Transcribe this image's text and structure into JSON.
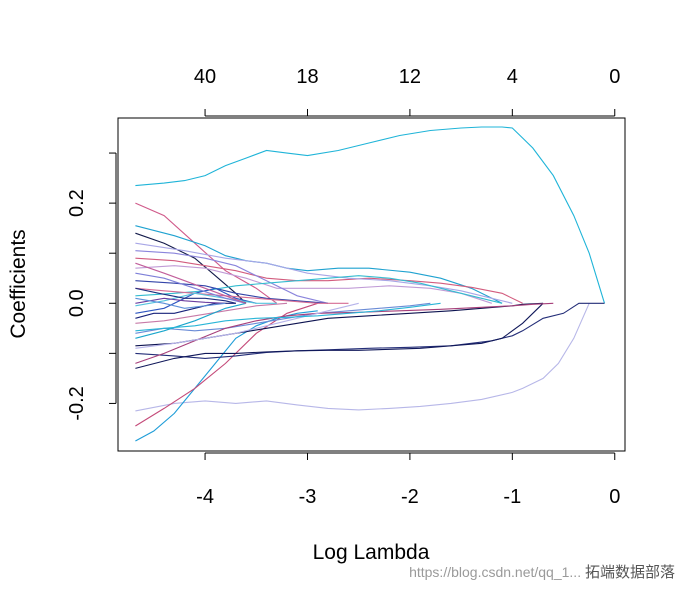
{
  "chart_data": {
    "type": "line",
    "xlabel": "Log Lambda",
    "ylabel": "Coefficients",
    "xlim": [
      -4.85,
      0.1
    ],
    "ylim": [
      -0.295,
      0.37
    ],
    "x_ticks": [
      -4,
      -3,
      -2,
      -1,
      0
    ],
    "x_tick_labels": [
      "-4",
      "-3",
      "-2",
      "-1",
      "0"
    ],
    "y_ticks": [
      -0.2,
      0.0,
      0.2
    ],
    "y_tick_labels": [
      "-0.2",
      "0.0",
      "0.2"
    ],
    "y_minor_ticks": [
      -0.1,
      0.1,
      0.3
    ],
    "top_axis_ticks": [
      -4,
      -3,
      -2,
      -1,
      0
    ],
    "top_axis_labels": [
      "40",
      "18",
      "12",
      "4",
      "0"
    ],
    "grid": false,
    "legend": "none",
    "series": [
      {
        "color": "#1fb4d8",
        "x": [
          -4.68,
          -4.4,
          -4.2,
          -4.0,
          -3.8,
          -3.6,
          -3.4,
          -3.2,
          -3.0,
          -2.7,
          -2.4,
          -2.1,
          -1.8,
          -1.5,
          -1.3,
          -1.1,
          -1.0,
          -0.9,
          -0.8,
          -0.6,
          -0.4,
          -0.25,
          -0.1
        ],
        "y": [
          0.235,
          0.24,
          0.245,
          0.255,
          0.275,
          0.29,
          0.305,
          0.3,
          0.295,
          0.305,
          0.32,
          0.335,
          0.345,
          0.35,
          0.352,
          0.352,
          0.35,
          0.33,
          0.31,
          0.255,
          0.175,
          0.1,
          0.0
        ]
      },
      {
        "color": "#b7b7e8",
        "x": [
          -4.68,
          -4.3,
          -4.0,
          -3.7,
          -3.4,
          -3.1,
          -2.8,
          -2.5,
          -2.2,
          -1.9,
          -1.6,
          -1.3,
          -1.0,
          -0.9,
          -0.7,
          -0.55,
          -0.4,
          -0.25
        ],
        "y": [
          -0.215,
          -0.2,
          -0.195,
          -0.2,
          -0.195,
          -0.203,
          -0.21,
          -0.213,
          -0.21,
          -0.206,
          -0.2,
          -0.192,
          -0.178,
          -0.17,
          -0.15,
          -0.12,
          -0.07,
          0.0
        ]
      },
      {
        "color": "#1f9dd8",
        "x": [
          -4.68,
          -4.5,
          -4.3,
          -4.1,
          -3.9,
          -3.7,
          -3.5,
          -3.3,
          -3.1,
          -2.9
        ],
        "y": [
          -0.275,
          -0.255,
          -0.22,
          -0.17,
          -0.12,
          -0.07,
          -0.045,
          -0.03,
          -0.02,
          -0.015
        ]
      },
      {
        "color": "#c44a79",
        "x": [
          -4.68,
          -4.4,
          -4.1,
          -3.8,
          -3.5,
          -3.2,
          -2.9
        ],
        "y": [
          -0.245,
          -0.21,
          -0.17,
          -0.12,
          -0.06,
          -0.02,
          0.0
        ]
      },
      {
        "color": "#d05a8a",
        "x": [
          -4.68,
          -4.4,
          -4.1,
          -3.8,
          -3.5,
          -3.3
        ],
        "y": [
          0.2,
          0.175,
          0.12,
          0.065,
          0.03,
          0.0
        ]
      },
      {
        "color": "#1fa2d0",
        "x": [
          -4.68,
          -4.3,
          -4.0,
          -3.8,
          -3.6,
          -3.4,
          -3.2,
          -3.0,
          -2.7,
          -2.4,
          -2.0,
          -1.7,
          -1.4,
          -1.1
        ],
        "y": [
          0.155,
          0.135,
          0.115,
          0.095,
          0.085,
          0.08,
          0.07,
          0.065,
          0.07,
          0.07,
          0.062,
          0.05,
          0.03,
          0.0
        ]
      },
      {
        "color": "#131a4a",
        "x": [
          -4.68,
          -4.4,
          -4.1,
          -3.9,
          -3.7,
          -3.6
        ],
        "y": [
          0.14,
          0.12,
          0.09,
          0.055,
          0.02,
          0.0
        ]
      },
      {
        "color": "#d25c7e",
        "x": [
          -4.68,
          -4.3,
          -4.0,
          -3.7,
          -3.4,
          -3.1,
          -2.8,
          -2.4,
          -2.0,
          -1.7,
          -1.4,
          -1.1,
          -0.9
        ],
        "y": [
          0.09,
          0.085,
          0.075,
          0.065,
          0.05,
          0.045,
          0.045,
          0.05,
          0.045,
          0.04,
          0.032,
          0.02,
          0.0
        ]
      },
      {
        "color": "#c09bd6",
        "x": [
          -4.68,
          -4.3,
          -4.0,
          -3.6,
          -3.3,
          -3.0,
          -2.6,
          -2.2,
          -1.8,
          -1.5,
          -1.2
        ],
        "y": [
          0.07,
          0.075,
          0.07,
          0.05,
          0.03,
          0.03,
          0.03,
          0.035,
          0.03,
          0.02,
          0.0
        ]
      },
      {
        "color": "#8a84dc",
        "x": [
          -4.68,
          -4.3,
          -4.0,
          -3.7,
          -3.4,
          -3.1,
          -2.8
        ],
        "y": [
          0.105,
          0.1,
          0.09,
          0.075,
          0.045,
          0.015,
          0.0
        ]
      },
      {
        "color": "#a8a6e6",
        "x": [
          -4.68,
          -4.2,
          -3.8,
          -3.4,
          -3.0,
          -2.6,
          -2.2,
          -1.8,
          -1.5,
          -1.2,
          -1.0
        ],
        "y": [
          0.12,
          0.105,
          0.09,
          0.08,
          0.06,
          0.05,
          0.045,
          0.035,
          0.025,
          0.01,
          0.0
        ]
      },
      {
        "color": "#242e78",
        "x": [
          -4.68,
          -4.3,
          -4.0,
          -3.7,
          -3.4,
          -3.1,
          -2.8,
          -2.4,
          -2.0,
          -1.6,
          -1.2,
          -1.0,
          -0.9,
          -0.7,
          -0.5,
          -0.35,
          -0.1
        ],
        "y": [
          -0.1,
          -0.105,
          -0.11,
          -0.105,
          -0.098,
          -0.095,
          -0.093,
          -0.09,
          -0.088,
          -0.085,
          -0.075,
          -0.065,
          -0.055,
          -0.03,
          -0.02,
          0.0,
          0.0
        ]
      },
      {
        "color": "#10185a",
        "x": [
          -4.68,
          -4.3,
          -4.0,
          -3.7,
          -3.4,
          -3.1,
          -2.8,
          -2.5,
          -2.2,
          -1.9,
          -1.6,
          -1.3,
          -1.1,
          -0.9,
          -0.7
        ],
        "y": [
          -0.13,
          -0.11,
          -0.1,
          -0.1,
          -0.097,
          -0.095,
          -0.094,
          -0.094,
          -0.092,
          -0.09,
          -0.085,
          -0.08,
          -0.07,
          -0.04,
          0.0
        ]
      },
      {
        "color": "#6a8bd6",
        "x": [
          -4.68,
          -4.4,
          -4.1,
          -3.8,
          -3.5,
          -3.2,
          -2.9,
          -2.6,
          -2.3,
          -2.0,
          -1.8
        ],
        "y": [
          -0.06,
          -0.05,
          -0.055,
          -0.05,
          -0.04,
          -0.03,
          -0.02,
          -0.015,
          -0.01,
          -0.005,
          0.0
        ]
      },
      {
        "color": "#0d1350",
        "x": [
          -4.68,
          -4.3,
          -4.0,
          -3.7,
          -3.4,
          -3.1,
          -2.8,
          -2.4,
          -2.0,
          -1.6,
          -1.3,
          -1.0,
          -0.9,
          -0.7
        ],
        "y": [
          -0.085,
          -0.08,
          -0.07,
          -0.06,
          -0.05,
          -0.04,
          -0.03,
          -0.025,
          -0.02,
          -0.015,
          -0.01,
          -0.005,
          -0.002,
          0.0
        ]
      },
      {
        "color": "#34bcd0",
        "x": [
          -4.68,
          -4.3,
          -4.0,
          -3.7,
          -3.4,
          -3.1,
          -2.8,
          -2.5,
          -2.2,
          -1.9,
          -1.6,
          -1.3,
          -1.1
        ],
        "y": [
          0.015,
          0.02,
          0.025,
          0.035,
          0.04,
          0.045,
          0.05,
          0.055,
          0.05,
          0.04,
          0.025,
          0.01,
          0.0
        ]
      },
      {
        "color": "#3344a8",
        "x": [
          -4.68,
          -4.3,
          -4.0,
          -3.7,
          -3.4,
          -3.1,
          -2.8
        ],
        "y": [
          0.045,
          0.04,
          0.035,
          0.02,
          0.01,
          0.005,
          0.0
        ]
      },
      {
        "color": "#2d55c0",
        "x": [
          -4.68,
          -4.4,
          -4.1,
          -3.9,
          -3.7,
          -3.5
        ],
        "y": [
          -0.02,
          -0.01,
          0.02,
          0.03,
          0.01,
          0.0
        ]
      },
      {
        "color": "#d66c94",
        "x": [
          -4.68,
          -4.4,
          -4.1,
          -3.8,
          -3.5,
          -3.2,
          -2.9,
          -2.6
        ],
        "y": [
          0.03,
          0.025,
          0.02,
          0.015,
          0.01,
          0.005,
          0.0,
          0.0
        ]
      },
      {
        "color": "#c77aa7",
        "x": [
          -4.68,
          -4.4,
          -4.1,
          -3.8,
          -3.5,
          -3.2
        ],
        "y": [
          -0.04,
          -0.035,
          -0.025,
          -0.015,
          -0.005,
          0.0
        ]
      },
      {
        "color": "#55c4de",
        "x": [
          -4.68,
          -4.4,
          -4.1,
          -3.8,
          -3.5,
          -3.3
        ],
        "y": [
          -0.005,
          0.005,
          0.02,
          0.01,
          0.0,
          0.0
        ]
      },
      {
        "color": "#1f2f80",
        "x": [
          -4.68,
          -4.45,
          -4.2,
          -4.0,
          -3.8,
          -3.7
        ],
        "y": [
          0.03,
          0.02,
          0.01,
          0.01,
          0.005,
          0.0
        ]
      },
      {
        "color": "#1aa6cc",
        "x": [
          -4.68,
          -4.4,
          -4.1,
          -3.8,
          -3.6
        ],
        "y": [
          -0.07,
          -0.055,
          -0.035,
          -0.01,
          0.0
        ]
      },
      {
        "color": "#7d7fd8",
        "x": [
          -4.68,
          -4.4,
          -4.1,
          -3.8,
          -3.6
        ],
        "y": [
          0.06,
          0.05,
          0.03,
          0.01,
          0.0
        ]
      },
      {
        "color": "#c15e9b",
        "x": [
          -4.68,
          -4.4,
          -4.2,
          -4.0,
          -3.8,
          -3.6
        ],
        "y": [
          0.08,
          0.06,
          0.045,
          0.03,
          0.015,
          0.0
        ]
      },
      {
        "color": "#17227a",
        "x": [
          -4.68,
          -4.5,
          -4.3,
          -4.1,
          -3.9,
          -3.7
        ],
        "y": [
          -0.03,
          -0.02,
          -0.02,
          -0.01,
          0.0,
          0.0
        ]
      },
      {
        "color": "#6c3fa0",
        "x": [
          -4.68,
          -4.4,
          -4.2,
          -4.0,
          -3.8
        ],
        "y": [
          0.0,
          0.01,
          0.005,
          0.002,
          0.0
        ]
      },
      {
        "color": "#5c8fd8",
        "x": [
          -4.68,
          -4.4,
          -4.2,
          -4.0,
          -3.8
        ],
        "y": [
          0.01,
          0.0,
          -0.01,
          -0.005,
          0.0
        ]
      },
      {
        "color": "#a63f7a",
        "x": [
          -4.68,
          -4.4,
          -4.1,
          -3.8,
          -3.5,
          -3.2,
          -2.9,
          -2.5,
          -2.1,
          -1.7,
          -1.3,
          -1.0,
          -0.8,
          -0.6
        ],
        "y": [
          -0.12,
          -0.1,
          -0.075,
          -0.05,
          -0.035,
          -0.025,
          -0.02,
          -0.018,
          -0.015,
          -0.012,
          -0.008,
          -0.005,
          -0.002,
          0.0
        ]
      },
      {
        "color": "#b6b3ea",
        "x": [
          -4.68,
          -4.3,
          -4.0,
          -3.7,
          -3.4,
          -3.1,
          -2.8,
          -2.5
        ],
        "y": [
          -0.09,
          -0.08,
          -0.07,
          -0.06,
          -0.045,
          -0.03,
          -0.015,
          0.0
        ]
      },
      {
        "color": "#29b5d7",
        "x": [
          -4.68,
          -4.4,
          -4.1,
          -3.8,
          -3.5,
          -3.2,
          -2.9,
          -2.6,
          -2.3,
          -2.0,
          -1.7
        ],
        "y": [
          -0.055,
          -0.05,
          -0.045,
          -0.035,
          -0.03,
          -0.028,
          -0.025,
          -0.02,
          -0.015,
          -0.008,
          0.0
        ]
      }
    ]
  },
  "watermark": {
    "line1": "https://blog.csdn.net/qq_1...",
    "line2": "拓端数据部落"
  }
}
